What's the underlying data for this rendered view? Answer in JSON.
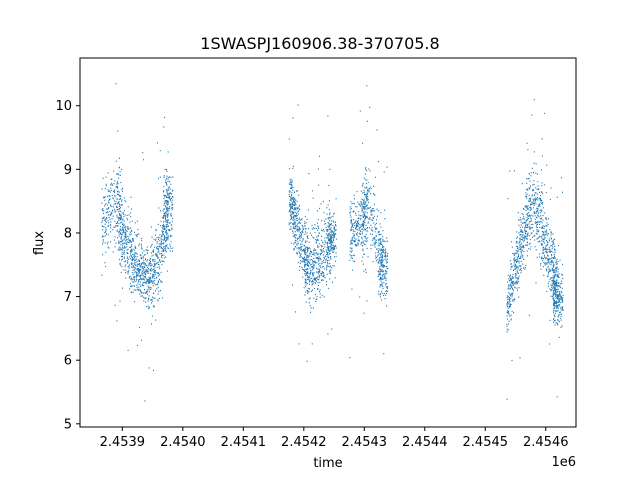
{
  "chart_data": {
    "type": "scatter",
    "title": "1SWASPJ160906.38-370705.8",
    "xlabel": "time",
    "ylabel": "flux",
    "x_offset_label": "1e6",
    "xlim": [
      2.45383,
      2.45465
    ],
    "ylim": [
      4.95,
      10.75
    ],
    "x_ticks": [
      2.4539,
      2.454,
      2.4541,
      2.4542,
      2.4543,
      2.4544,
      2.4545,
      2.4546
    ],
    "x_tick_labels": [
      "2.4539",
      "2.4540",
      "2.4541",
      "2.4542",
      "2.4543",
      "2.4544",
      "2.4545",
      "2.4546"
    ],
    "y_ticks": [
      5,
      6,
      7,
      8,
      9,
      10
    ],
    "y_tick_labels": [
      "5",
      "6",
      "7",
      "8",
      "9",
      "10"
    ],
    "grid": false,
    "marker_color": "#1f77b4",
    "segments": [
      {
        "x": 2.453865,
        "y": 8.1,
        "spread": 0.45
      },
      {
        "x": 2.45389,
        "y": 8.5,
        "spread": 0.5
      },
      {
        "x": 2.4539,
        "y": 8.0,
        "spread": 0.45
      },
      {
        "x": 2.453915,
        "y": 7.6,
        "spread": 0.35
      },
      {
        "x": 2.45393,
        "y": 7.4,
        "spread": 0.35
      },
      {
        "x": 2.453945,
        "y": 7.3,
        "spread": 0.4
      },
      {
        "x": 2.45396,
        "y": 7.6,
        "spread": 0.45
      },
      {
        "x": 2.453975,
        "y": 8.4,
        "spread": 0.45
      },
      {
        "x": 2.454175,
        "y": 8.6,
        "spread": 0.35
      },
      {
        "x": 2.454185,
        "y": 8.2,
        "spread": 0.35
      },
      {
        "x": 2.4542,
        "y": 7.7,
        "spread": 0.4
      },
      {
        "x": 2.45421,
        "y": 7.4,
        "spread": 0.4
      },
      {
        "x": 2.454225,
        "y": 7.6,
        "spread": 0.45
      },
      {
        "x": 2.454245,
        "y": 7.9,
        "spread": 0.35
      },
      {
        "x": 2.454275,
        "y": 8.0,
        "spread": 0.35
      },
      {
        "x": 2.454295,
        "y": 8.2,
        "spread": 0.45
      },
      {
        "x": 2.454305,
        "y": 8.5,
        "spread": 0.45
      },
      {
        "x": 2.45433,
        "y": 7.5,
        "spread": 0.35
      },
      {
        "x": 2.454535,
        "y": 6.8,
        "spread": 0.3
      },
      {
        "x": 2.45455,
        "y": 7.5,
        "spread": 0.4
      },
      {
        "x": 2.454565,
        "y": 8.1,
        "spread": 0.4
      },
      {
        "x": 2.45458,
        "y": 8.5,
        "spread": 0.45
      },
      {
        "x": 2.454595,
        "y": 8.0,
        "spread": 0.45
      },
      {
        "x": 2.45461,
        "y": 7.5,
        "spread": 0.4
      },
      {
        "x": 2.45462,
        "y": 7.0,
        "spread": 0.35
      }
    ]
  }
}
